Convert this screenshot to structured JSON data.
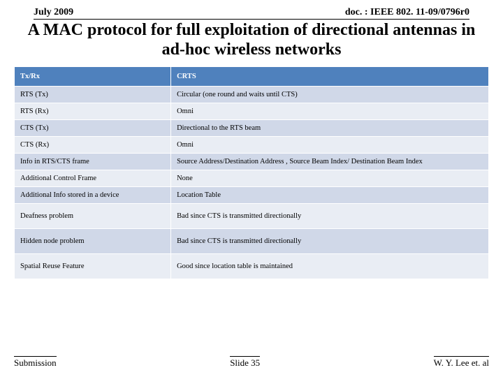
{
  "header": {
    "date": "July 2009",
    "docref": "doc. : IEEE 802. 11-09/0796r0"
  },
  "title": "A MAC protocol for full exploitation of directional antennas in ad-hoc wireless networks",
  "table": {
    "type": "table",
    "header_bg": "#4f81bd",
    "header_fg": "#ffffff",
    "row_odd_bg": "#d0d8e8",
    "row_even_bg": "#e9edf4",
    "border_color": "#ffffff",
    "font_size_pt": 8,
    "columns": [
      {
        "key": "Tx/Rx",
        "width_pct": 33
      },
      {
        "key": "CRTS",
        "width_pct": 67
      }
    ],
    "rows": [
      {
        "c0": "RTS (Tx)",
        "c1": "Circular (one round and waits until CTS)",
        "stripe": "odd"
      },
      {
        "c0": "RTS (Rx)",
        "c1": "Omni",
        "stripe": "even"
      },
      {
        "c0": "CTS (Tx)",
        "c1": "Directional to the RTS beam",
        "stripe": "odd"
      },
      {
        "c0": "CTS (Rx)",
        "c1": "Omni",
        "stripe": "even"
      },
      {
        "c0": "Info in RTS/CTS frame",
        "c1": "Source Address/Destination Address , Source Beam Index/ Destination Beam Index",
        "stripe": "odd"
      },
      {
        "c0": "Additional Control Frame",
        "c1": "None",
        "stripe": "even"
      },
      {
        "c0": "Additional Info stored in a device",
        "c1": "Location Table",
        "stripe": "odd"
      },
      {
        "c0": "Deafness problem",
        "c1": "Bad since CTS is transmitted directionally",
        "stripe": "even",
        "tall": true
      },
      {
        "c0": "Hidden node problem",
        "c1": "Bad since CTS is transmitted directionally",
        "stripe": "odd",
        "tall": true
      },
      {
        "c0": "Spatial Reuse Feature",
        "c1": "Good since location table is maintained",
        "stripe": "even",
        "tall": true
      }
    ]
  },
  "footer": {
    "left": "Submission",
    "center": "Slide 35",
    "right": "W. Y. Lee et. al"
  }
}
